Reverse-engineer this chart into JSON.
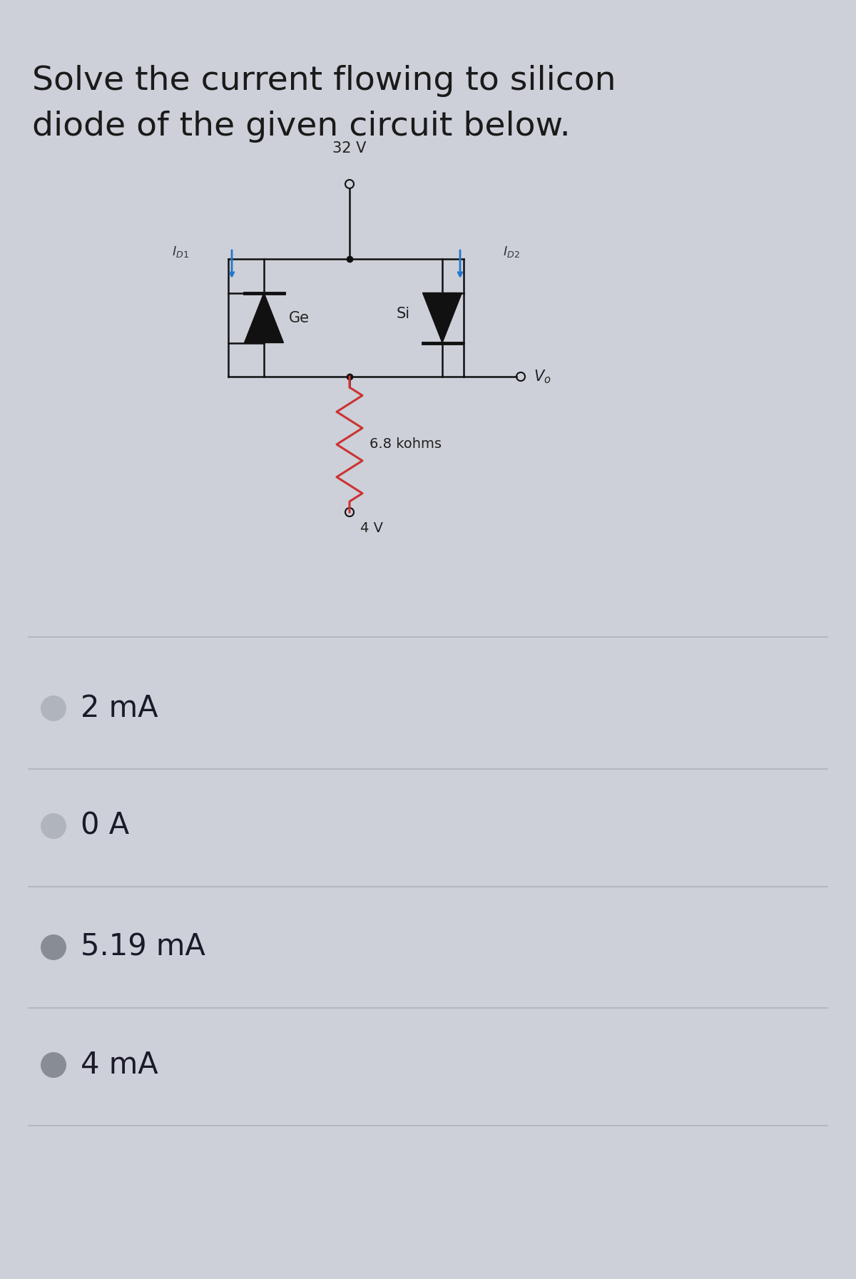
{
  "title_line1": "Solve the current flowing to silicon",
  "title_line2": "diode of the given circuit below.",
  "bg_color": "#cdd0d8",
  "title_color": "#1a1a1a",
  "title_fontsize": 34,
  "circuit_voltage_top": "32 V",
  "circuit_voltage_bottom": "4 V",
  "circuit_resistor_label": "6.8 kohms",
  "circuit_ge_label": "Ge",
  "circuit_si_label": "Si",
  "choices": [
    "2 mA",
    "0 A",
    "5.19 mA",
    "4 mA"
  ],
  "choice_fontsize": 30,
  "circle_color_light": "#b0b4bb",
  "circle_color_dark": "#888c94",
  "circle_fill": [
    false,
    false,
    true,
    true
  ],
  "divider_color": "#b0b3b8",
  "diode_color": "#2277cc",
  "wire_color": "#111111",
  "resistor_color": "#cc3333"
}
